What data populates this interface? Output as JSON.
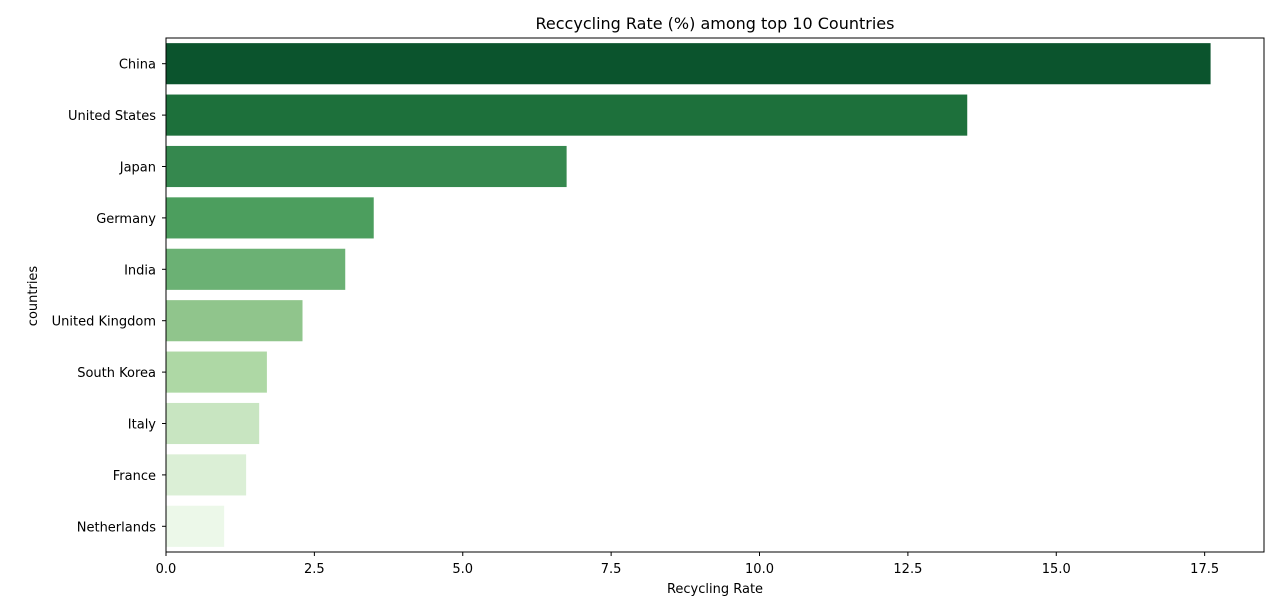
{
  "chart_data": {
    "type": "bar",
    "orientation": "horizontal",
    "title": "Reccycling Rate (%) among top 10 Countries",
    "xlabel": "Recycling Rate",
    "ylabel": "countries",
    "categories": [
      "China",
      "United States",
      "Japan",
      "Germany",
      "India",
      "United Kingdom",
      "South Korea",
      "Italy",
      "France",
      "Netherlands"
    ],
    "values": [
      17.6,
      13.5,
      6.75,
      3.5,
      3.02,
      2.3,
      1.7,
      1.57,
      1.35,
      0.98
    ],
    "xlim": [
      0,
      18.5
    ],
    "xticks": [
      "0.0",
      "2.5",
      "5.0",
      "7.5",
      "10.0",
      "12.5",
      "15.0",
      "17.5"
    ],
    "colors": [
      "#0b542d",
      "#1d703b",
      "#35884e",
      "#4c9e5e",
      "#6bb174",
      "#90c58c",
      "#aed8a5",
      "#c8e5c1",
      "#dbefd6",
      "#ecf8e9"
    ],
    "grid": false,
    "legend": "none"
  }
}
